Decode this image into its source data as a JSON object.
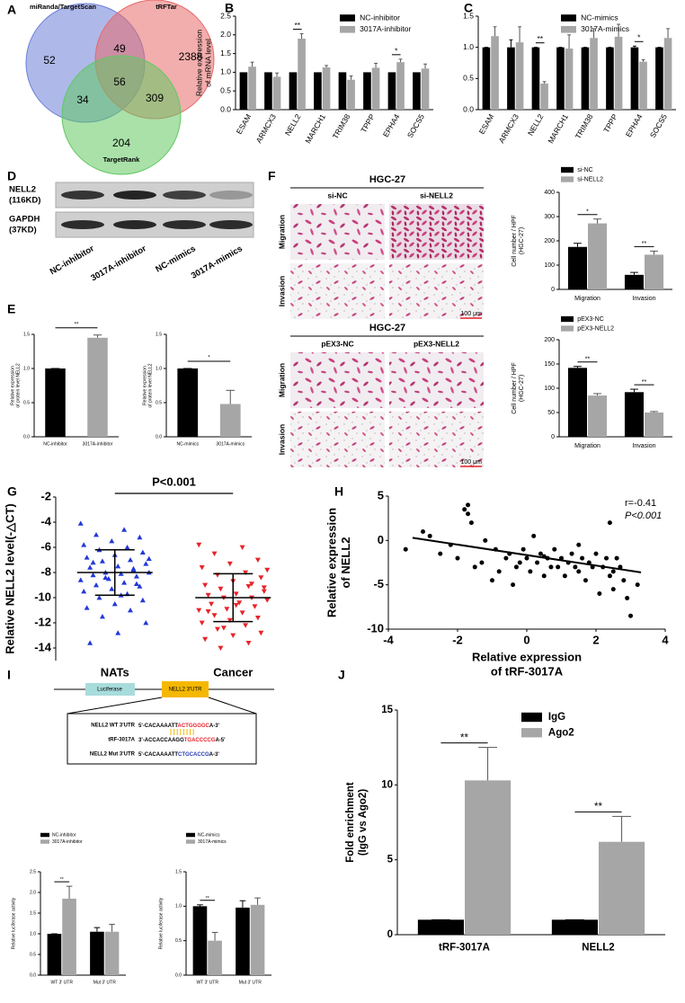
{
  "chart_data": [
    {
      "label": "A",
      "type": "venn",
      "sets": [
        "miRanda/TargetScan",
        "tRFTar",
        "TargetRank"
      ],
      "colors": [
        "#6b7fd9",
        "#e86a6a",
        "#62c862"
      ],
      "regions": [
        52,
        2388,
        204,
        49,
        34,
        309,
        56
      ]
    },
    {
      "label": "B",
      "type": "bar",
      "ylabel": [
        "Relative expression",
        "of mRNA level"
      ],
      "categories": [
        "ESAM",
        "ARMCX3",
        "NELL2",
        "MARCH1",
        "TRIM38",
        "TPPP",
        "EPHA4",
        "SOCS5"
      ],
      "series": [
        {
          "name": "NC-inhibitor",
          "color": "#000000",
          "values": [
            1,
            1,
            1,
            1,
            1,
            1,
            1,
            1
          ]
        },
        {
          "name": "3017A-inhibitor",
          "color": "#a6a6a6",
          "values": [
            1.15,
            0.88,
            1.9,
            1.13,
            0.8,
            1.12,
            1.27,
            1.1
          ],
          "errors": [
            0.12,
            0.1,
            0.13,
            0.05,
            0.1,
            0.12,
            0.08,
            0.12
          ]
        }
      ],
      "significance": [
        null,
        null,
        "**",
        null,
        null,
        null,
        "*",
        null
      ],
      "ylim": [
        0,
        2.5
      ],
      "yticks": [
        {
          "value": 0,
          "label": "0.0"
        },
        0.5,
        {
          "value": 1,
          "label": "1.0"
        },
        1.5,
        {
          "value": 2,
          "label": "2.0"
        },
        2.5
      ],
      "legend": "top-right"
    },
    {
      "label": "C",
      "type": "bar",
      "categories": [
        "ESAM",
        "ARMCX3",
        "NELL2",
        "MARCH1",
        "TRIM38",
        "TPPP",
        "EPHA4",
        "SOCS5"
      ],
      "series": [
        {
          "name": "NC-mimics",
          "color": "#000000",
          "values": [
            1,
            1,
            1,
            1,
            1,
            1,
            1,
            1
          ],
          "errors": [
            0,
            0.12,
            0,
            0,
            0,
            0,
            0.02,
            0
          ]
        },
        {
          "name": "3017A-mimics",
          "color": "#a6a6a6",
          "values": [
            1.18,
            1.08,
            0.42,
            0.98,
            1.15,
            1.17,
            0.77,
            1.15
          ],
          "errors": [
            0.15,
            0.25,
            0.03,
            0.22,
            0.15,
            0.2,
            0.03,
            0.15
          ]
        }
      ],
      "significance": [
        null,
        null,
        "**",
        null,
        null,
        null,
        "*",
        null
      ],
      "ylim": [
        0,
        1.5
      ],
      "yticks": [
        {
          "value": 0,
          "label": "0.0"
        },
        0.5,
        {
          "value": 1,
          "label": "1.0"
        },
        1.5
      ],
      "legend": "top-right"
    },
    {
      "label": "D",
      "type": "blot",
      "rows": [
        {
          "name": "NELL2",
          "size": "(116KD)"
        },
        {
          "name": "GAPDH",
          "size": "(37KD)"
        }
      ],
      "lanes": [
        "NC-inhibitor",
        "3017A-inhibitor",
        "NC-mimics",
        "3017A-mimics"
      ]
    },
    {
      "label": "E",
      "type": "bar",
      "ylabel": [
        "Relative expression",
        "of protein level NELL2"
      ],
      "categories": [
        "NC-inhibitor",
        "3017A-inhibitor"
      ],
      "values": [
        1,
        1.45
      ],
      "errors": [
        0,
        0.04
      ],
      "colors": [
        "#000000",
        "#a6a6a6"
      ],
      "significance": "**",
      "ylim": [
        0,
        1.5
      ],
      "yticks": [
        {
          "value": 0,
          "label": "0.0"
        },
        0.5,
        {
          "value": 1,
          "label": "1.0"
        },
        1.5
      ]
    },
    {
      "type": "bar",
      "ylabel": [
        "Relative expression",
        "of protein level NELL2"
      ],
      "categories": [
        "NC-mimics",
        "3017A-mimics"
      ],
      "values": [
        1,
        0.48
      ],
      "errors": [
        0,
        0.2
      ],
      "colors": [
        "#000000",
        "#a6a6a6"
      ],
      "significance": "*",
      "ylim": [
        0,
        1.5
      ],
      "yticks": [
        {
          "value": 0,
          "label": "0.0"
        },
        0.5,
        {
          "value": 1,
          "label": "1.0"
        },
        1.5
      ]
    },
    {
      "label": "F",
      "type": "images",
      "title": "HGC-27",
      "columns": [
        "si-NC",
        "si-NELL2"
      ],
      "rows": [
        "Migration",
        "Invasion"
      ],
      "scale": "100 μm"
    },
    {
      "type": "images",
      "title": "HGC-27",
      "columns": [
        "pEX3-NC",
        "pEX3-NELL2"
      ],
      "rows": [
        "Migration",
        "Invasion"
      ],
      "scale": "100 μm"
    },
    {
      "type": "bar",
      "ylabel": [
        "Cell number / HPF",
        "(HGC-27)"
      ],
      "categories": [
        "Migration",
        "Invasion"
      ],
      "series": [
        {
          "name": "si-NC",
          "color": "#000000",
          "values": [
            175,
            60
          ],
          "errors": [
            15,
            10
          ]
        },
        {
          "name": "si-NELL2",
          "color": "#a6a6a6",
          "values": [
            272,
            143
          ],
          "errors": [
            18,
            15
          ]
        }
      ],
      "significance": [
        "*",
        "**"
      ],
      "ylim": [
        0,
        400
      ],
      "yticks": [
        0,
        100,
        200,
        300,
        400
      ],
      "legend": "top"
    },
    {
      "type": "bar",
      "ylabel": [
        "Cell number / HPF",
        "(HGC-27)"
      ],
      "categories": [
        "Migration",
        "Invasion"
      ],
      "series": [
        {
          "name": "pEX3-NC",
          "color": "#000000",
          "values": [
            142,
            92
          ],
          "errors": [
            3,
            6
          ]
        },
        {
          "name": "pEX3-NELL2",
          "color": "#a6a6a6",
          "values": [
            85,
            50
          ],
          "errors": [
            4,
            2
          ]
        }
      ],
      "significance": [
        "**",
        "**"
      ],
      "ylim": [
        0,
        200
      ],
      "yticks": [
        0,
        50,
        100,
        150,
        200
      ],
      "legend": "top"
    },
    {
      "label": "G",
      "type": "dot",
      "ylabel": [
        "Relative NELL2 level(-△CT)"
      ],
      "categories": [
        "NATs",
        "Cancer"
      ],
      "annotation": "P<0.001",
      "groups": [
        {
          "color": "#2338d8",
          "marker": "triangle-up",
          "mean": -8,
          "sd": 1.8,
          "values": [
            -4.1,
            -4.6,
            -5.0,
            -5.2,
            -5.5,
            -5.8,
            -6.0,
            -6.2,
            -6.4,
            -6.6,
            -6.8,
            -7.0,
            -7.1,
            -7.3,
            -7.5,
            -7.6,
            -7.8,
            -8.0,
            -8.0,
            -8.1,
            -8.2,
            -8.3,
            -8.5,
            -8.6,
            -8.8,
            -9.0,
            -9.1,
            -9.3,
            -9.5,
            -9.7,
            -10.0,
            -10.2,
            -10.5,
            -10.8,
            -11.0,
            -11.5,
            -12.0,
            -12.8,
            -13.6,
            -7.7,
            -8.4,
            -6.9,
            -9.8,
            -7.2,
            -8.9
          ]
        },
        {
          "color": "#e8232a",
          "marker": "triangle-down",
          "mean": -10,
          "sd": 1.9,
          "values": [
            -5.8,
            -6.0,
            -6.5,
            -7.0,
            -7.3,
            -7.6,
            -8.0,
            -8.2,
            -8.4,
            -8.7,
            -9.0,
            -9.1,
            -9.3,
            -9.5,
            -9.7,
            -9.8,
            -10.0,
            -10.0,
            -10.2,
            -10.4,
            -10.5,
            -10.7,
            -10.9,
            -11.0,
            -11.2,
            -11.4,
            -11.6,
            -11.8,
            -12.0,
            -12.2,
            -12.5,
            -12.8,
            -13.0,
            -13.3,
            -13.6,
            -14.0,
            -9.2,
            -10.6,
            -11.1,
            -8.9,
            -12.4,
            -7.8
          ]
        }
      ],
      "ylim": [
        -15,
        -2
      ],
      "yticks": [
        -14,
        -12,
        -10,
        -8,
        -6,
        -4,
        -2
      ]
    },
    {
      "label": "H",
      "type": "scatter",
      "ylabel": [
        "Relative expression",
        "of NELL2"
      ],
      "xlabel": [
        "Relative expression",
        "of tRF-3017A"
      ],
      "annotations": [
        "r=-0.41",
        "P<0.001"
      ],
      "color": "#000000",
      "x": [
        -3.5,
        -3.0,
        -2.8,
        -2.5,
        -2.2,
        -2.0,
        -1.8,
        -1.7,
        -1.6,
        -1.5,
        -1.3,
        -1.2,
        -1.0,
        -0.9,
        -0.8,
        -0.6,
        -0.5,
        -0.4,
        -0.3,
        -0.2,
        -0.1,
        0,
        0.1,
        0.2,
        0.3,
        0.4,
        0.5,
        0.6,
        0.7,
        0.8,
        0.9,
        1.0,
        1.1,
        1.2,
        1.3,
        1.4,
        1.5,
        1.6,
        1.7,
        1.8,
        1.9,
        2.0,
        2.1,
        2.2,
        2.3,
        2.4,
        2.5,
        2.6,
        2.7,
        2.8,
        2.9,
        3.0,
        3.2,
        -1.7,
        0.5,
        1.5,
        2.4,
        2.5
      ],
      "y": [
        -1.0,
        1.0,
        0.5,
        -1.5,
        -0.5,
        -2.0,
        3.5,
        4.0,
        2.0,
        -3.0,
        -2.5,
        0.0,
        -4.5,
        -1.0,
        -3.5,
        -2.0,
        -1.5,
        -5.0,
        -3.0,
        -2.5,
        -1.0,
        -2.0,
        -3.5,
        0.5,
        -2.5,
        -1.5,
        -4.0,
        -2.0,
        -3.0,
        -1.0,
        -3.0,
        -2.0,
        -4.0,
        -2.5,
        -1.5,
        -3.0,
        -3.5,
        -2.0,
        -4.5,
        -2.5,
        -3.0,
        -1.5,
        -6.0,
        -3.0,
        -2.0,
        -4.0,
        -3.5,
        -2.0,
        -3.0,
        -4.5,
        -6.5,
        -8.5,
        -5.0,
        3.0,
        -1.8,
        -0.5,
        2.0,
        -5.5
      ],
      "fit": {
        "x": [
          -3.3,
          3.3
        ],
        "y": [
          0.3,
          -3.6
        ]
      },
      "xlim": [
        -4,
        4
      ],
      "xticks": [
        -4,
        -2,
        0,
        2,
        4
      ],
      "ylim": [
        -10,
        5
      ],
      "yticks": [
        -10,
        -5,
        0,
        5
      ]
    },
    {
      "label": "I",
      "type": "construct",
      "elements": [
        "Luciferase",
        "NELL2 3'UTR"
      ],
      "highlight_colors": [
        "#e8232a",
        "#e8232a",
        "#2338b0"
      ],
      "sequences": [
        {
          "name": "NELL2 WT 3'UTR",
          "seq": [
            "5'-CACAAAATT",
            "ACTGGGGC",
            "A-3'"
          ]
        },
        {
          "name": "tRF-3017A",
          "seq": [
            "3'-ACCACCAAGG",
            "TGACCCCG",
            "A-5'"
          ]
        },
        {
          "name": "NELL2 Mut 3'UTR",
          "seq": [
            "5'-CACAAAATT",
            "CTGCACCG",
            "A-3'"
          ]
        }
      ]
    },
    {
      "type": "bar",
      "ylabel": [
        "Relative luciferase activity"
      ],
      "categories": [
        "WT 3' UTR",
        "Mut 3' UTR"
      ],
      "series": [
        {
          "name": "NC-inhibitor",
          "color": "#000000",
          "values": [
            1,
            1.05
          ],
          "errors": [
            0,
            0.1
          ]
        },
        {
          "name": "3017A-inhibitor",
          "color": "#a6a6a6",
          "values": [
            1.85,
            1.05
          ],
          "errors": [
            0.3,
            0.18
          ]
        }
      ],
      "significance": [
        "**",
        null
      ],
      "ylim": [
        0,
        2.5
      ],
      "yticks": [
        {
          "value": 0,
          "label": "0.0"
        },
        0.5,
        {
          "value": 1,
          "label": "1.0"
        },
        1.5,
        {
          "value": 2,
          "label": "2.0"
        },
        2.5
      ],
      "legend": "top"
    },
    {
      "type": "bar",
      "ylabel": [
        "Relative luciferase activity"
      ],
      "categories": [
        "WT 3' UTR",
        "Mut 3' UTR"
      ],
      "series": [
        {
          "name": "NC-mimics",
          "color": "#000000",
          "values": [
            1,
            0.98
          ],
          "errors": [
            0.02,
            0.1
          ]
        },
        {
          "name": "3017A-mimics",
          "color": "#a6a6a6",
          "values": [
            0.5,
            1.02
          ],
          "errors": [
            0.12,
            0.1
          ]
        }
      ],
      "significance": [
        "**",
        null
      ],
      "ylim": [
        0,
        1.5
      ],
      "yticks": [
        {
          "value": 0,
          "label": "0.0"
        },
        0.5,
        {
          "value": 1,
          "label": "1.0"
        },
        1.5
      ],
      "legend": "top"
    },
    {
      "label": "J",
      "type": "bar",
      "ylabel": [
        "Fold enrichment",
        "(IgG vs Ago2)"
      ],
      "categories": [
        "tRF-3017A",
        "NELL2"
      ],
      "series": [
        {
          "name": "IgG",
          "color": "#000000",
          "values": [
            1,
            1
          ],
          "errors": [
            0,
            0
          ]
        },
        {
          "name": "Ago2",
          "color": "#a6a6a6",
          "values": [
            10.3,
            6.2
          ],
          "errors": [
            2.2,
            1.7
          ]
        }
      ],
      "significance": [
        "**",
        "**"
      ],
      "ylim": [
        0,
        15
      ],
      "yticks": [
        0,
        5,
        10,
        15
      ],
      "legend": "top-right"
    }
  ]
}
